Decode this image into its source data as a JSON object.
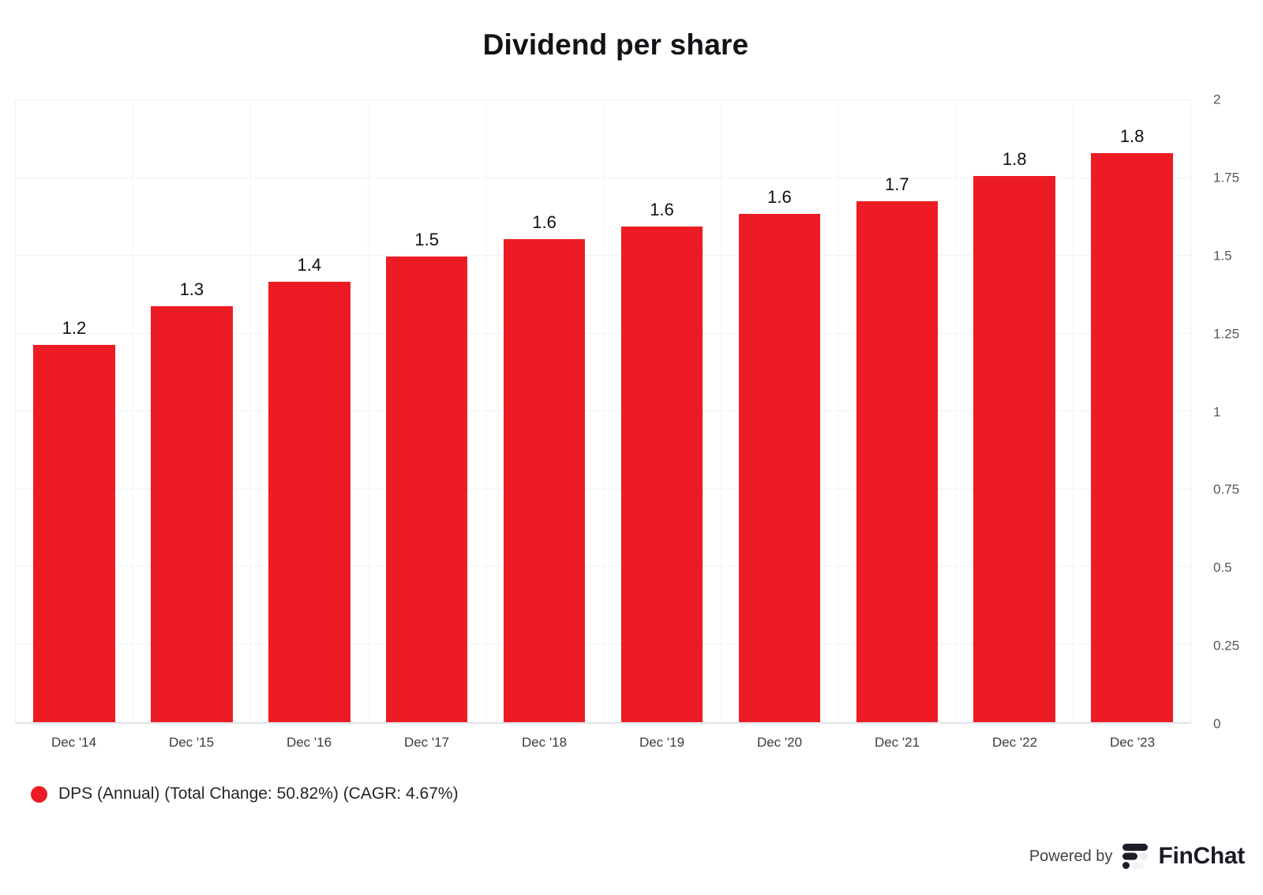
{
  "chart": {
    "title": "Dividend per share"
  },
  "chart_data": {
    "type": "bar",
    "title": "Dividend per share",
    "categories": [
      "Dec '14",
      "Dec '15",
      "Dec '16",
      "Dec '17",
      "Dec '18",
      "Dec '19",
      "Dec '20",
      "Dec '21",
      "Dec '22",
      "Dec '23"
    ],
    "series": [
      {
        "name": "DPS (Annual)",
        "values": [
          1.214,
          1.337,
          1.416,
          1.497,
          1.553,
          1.594,
          1.634,
          1.676,
          1.756,
          1.831
        ],
        "labels": [
          "1.2",
          "1.3",
          "1.4",
          "1.5",
          "1.6",
          "1.6",
          "1.6",
          "1.7",
          "1.8",
          "1.8"
        ],
        "color": "#ed1c24"
      }
    ],
    "ylim": [
      0,
      2
    ],
    "yticks": [
      {
        "value": 0,
        "label": "0"
      },
      {
        "value": 0.25,
        "label": "0.25"
      },
      {
        "value": 0.5,
        "label": "0.5"
      },
      {
        "value": 0.75,
        "label": "0.75"
      },
      {
        "value": 1,
        "label": "1"
      },
      {
        "value": 1.25,
        "label": "1.25"
      },
      {
        "value": 1.5,
        "label": "1.5"
      },
      {
        "value": 1.75,
        "label": "1.75"
      },
      {
        "value": 2,
        "label": "2"
      }
    ],
    "yaxis_position": "right",
    "grid": true,
    "legend_position": "bottom-left",
    "total_change": "50.82%",
    "cagr": "4.67%"
  },
  "legend": {
    "label": "DPS (Annual) (Total Change: 50.82%) (CAGR: 4.67%)",
    "marker_color": "#ed1c24"
  },
  "footer": {
    "powered_by": "Powered by",
    "brand": "FinChat"
  },
  "colors": {
    "bar": "#ed1c24",
    "title_text": "#121217",
    "axis_label": "#3b3b45",
    "ytick_label": "#55555f",
    "gridline": "#f2f2f6",
    "baseline": "#e1e2ea",
    "logo_dark": "#1d1e27",
    "logo_light": "#ededf2"
  }
}
